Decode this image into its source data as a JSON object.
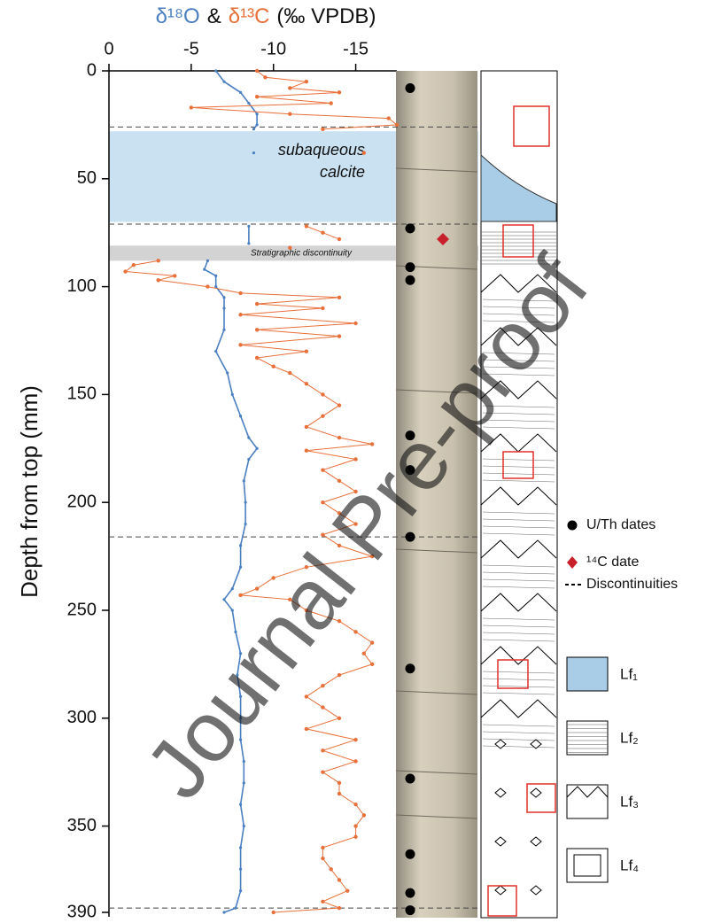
{
  "chart_data": {
    "type": "line",
    "title": {
      "joiner": "&",
      "units": "(‰ VPDB)"
    },
    "y_label": "Depth from top (mm)",
    "xlim": [
      0,
      -17.5
    ],
    "xticks": [
      0,
      -5,
      -10,
      -15
    ],
    "ylim": [
      0,
      390
    ],
    "yticks": [
      0,
      50,
      100,
      150,
      200,
      250,
      300,
      350,
      390
    ],
    "y_inverted": true,
    "series": [
      {
        "name": "δ¹⁸O",
        "color": "#4a7fc1",
        "depth": [
          0,
          5,
          10,
          15,
          20,
          25,
          27,
          38,
          72,
          80,
          88,
          92,
          95,
          100,
          105,
          110,
          120,
          130,
          140,
          150,
          160,
          170,
          175,
          180,
          190,
          200,
          210,
          220,
          230,
          240,
          245,
          250,
          260,
          270,
          280,
          290,
          300,
          310,
          320,
          330,
          340,
          350,
          360,
          370,
          380,
          388,
          390
        ],
        "values": [
          -6.5,
          -7,
          -8,
          -8.5,
          -9,
          -9,
          -8.8,
          -8.8,
          -8.5,
          -8.5,
          -6,
          -5.8,
          -6.5,
          -6.5,
          -7,
          -7,
          -7,
          -6.5,
          -7.2,
          -7.5,
          -8,
          -8.5,
          -9,
          -8.5,
          -8.2,
          -8.3,
          -8.3,
          -8,
          -8,
          -7.5,
          -7,
          -7.5,
          -7.7,
          -8,
          -7.8,
          -8,
          -8,
          -8,
          -8.2,
          -8.2,
          -8,
          -8.2,
          -8,
          -8,
          -8,
          -7.7,
          -7
        ]
      },
      {
        "name": "δ¹³C",
        "color": "#e8703a",
        "depth": [
          0,
          3,
          5,
          8,
          10,
          12,
          15,
          17,
          20,
          22,
          25,
          27,
          38,
          72,
          75,
          78,
          82,
          88,
          90,
          93,
          95,
          97,
          100,
          103,
          105,
          108,
          110,
          113,
          117,
          120,
          123,
          127,
          130,
          133,
          137,
          140,
          145,
          150,
          155,
          160,
          165,
          170,
          173,
          176,
          180,
          185,
          190,
          195,
          200,
          205,
          210,
          215,
          220,
          225,
          230,
          235,
          240,
          243,
          245,
          250,
          255,
          260,
          265,
          270,
          275,
          280,
          285,
          290,
          295,
          300,
          305,
          310,
          315,
          320,
          325,
          330,
          335,
          340,
          345,
          350,
          355,
          360,
          365,
          370,
          375,
          380,
          385,
          388,
          390
        ],
        "values": [
          -9,
          -9.5,
          -12,
          -11,
          -14,
          -9,
          -13.5,
          -5,
          -11,
          -17,
          -17.5,
          -13,
          -15.5,
          -12,
          -13,
          -14,
          -11,
          -3,
          -1.5,
          -1,
          -4,
          -3,
          -6,
          -8,
          -14,
          -9,
          -13,
          -8,
          -15,
          -9,
          -14,
          -8,
          -12,
          -9,
          -10,
          -11,
          -12,
          -13,
          -14,
          -13,
          -12,
          -14,
          -16,
          -12,
          -15,
          -13,
          -14,
          -15,
          -13,
          -14,
          -15,
          -13,
          -14,
          -16,
          -12,
          -10,
          -9,
          -8,
          -11,
          -12,
          -14,
          -15,
          -16,
          -15.5,
          -16,
          -14,
          -13,
          -12,
          -13,
          -14,
          -12,
          -15,
          -13,
          -15,
          -13,
          -14,
          -14,
          -15,
          -15.5,
          -15,
          -15,
          -13,
          -13,
          -13.5,
          -14,
          -14.5,
          -13,
          -14,
          -10
        ]
      }
    ],
    "bands": [
      {
        "label": [
          "subaqueous",
          "calcite"
        ],
        "from": 28,
        "to": 70,
        "color": "#c9e1f1"
      },
      {
        "label": [
          "Stratigraphic discontinuity"
        ],
        "from": 81,
        "to": 88,
        "color": "#d3d3d3"
      }
    ],
    "discontinuities": [
      26,
      71,
      216,
      388
    ],
    "uth_dates": {
      "label": "U/Th dates",
      "depth": [
        8,
        73,
        91,
        97,
        169,
        185,
        216,
        277,
        328,
        363,
        381,
        389
      ]
    },
    "c14_dates": {
      "label": "¹⁴C date",
      "depth": [
        78
      ],
      "color": "#c8202a"
    },
    "discontinuity_label": "Discontinuities",
    "lithofacies": [
      "Lf₁",
      "Lf₂",
      "Lf₃",
      "Lf₄"
    ],
    "watermark": "Journal Pre-proof"
  }
}
